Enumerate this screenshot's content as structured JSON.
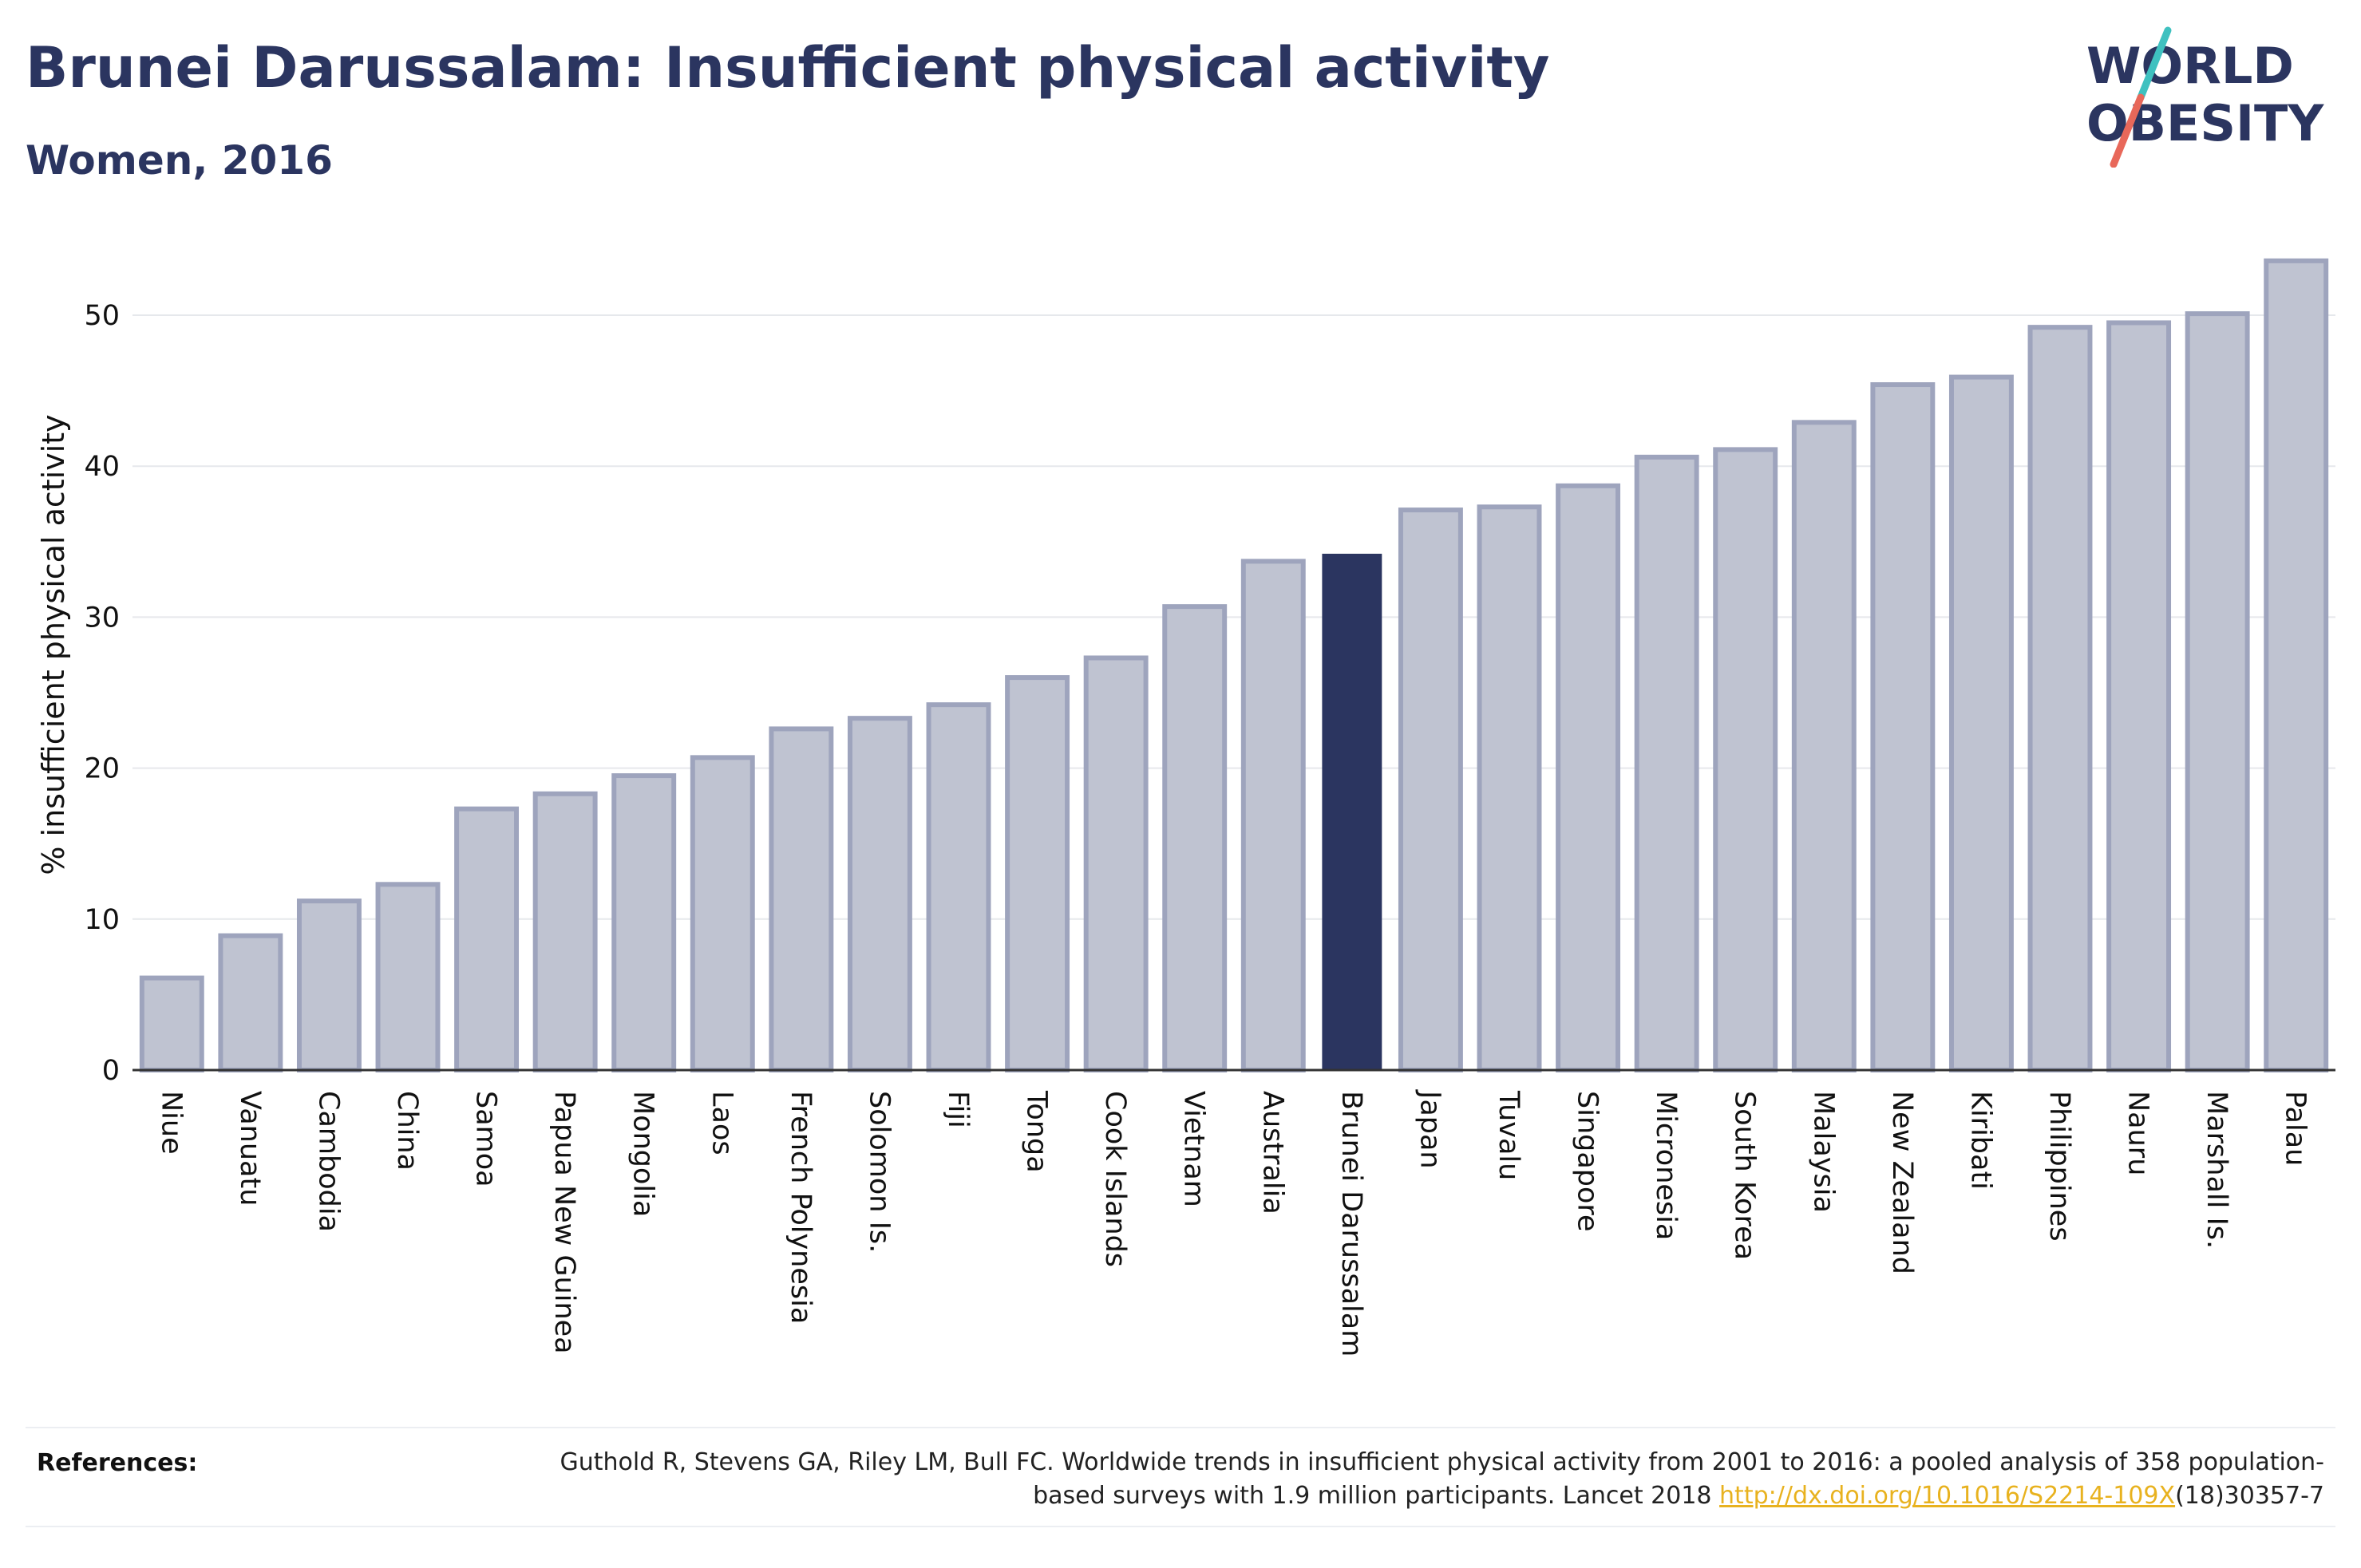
{
  "header": {
    "title": "Brunei Darussalam: Insufficient physical activity",
    "subtitle": "Women, 2016"
  },
  "logo": {
    "line1": "WORLD",
    "line2": "OBESITY",
    "colors": {
      "text": "#2b3560",
      "slash_top": "#3fc1c0",
      "slash_bottom": "#e8685a"
    }
  },
  "colors": {
    "bar_fill": "#bfc3d1",
    "bar_stroke": "#9ea4bd",
    "highlight": "#2b3560",
    "grid": "#e6e8ec",
    "axis": "#333333"
  },
  "chart_data": {
    "type": "bar",
    "title": "Brunei Darussalam: Insufficient physical activity",
    "subtitle": "Women, 2016",
    "ylabel": "% insufficient physical activity",
    "xlabel": "",
    "ylim": [
      0,
      55
    ],
    "yticks": [
      0,
      10,
      20,
      30,
      40,
      50
    ],
    "grid": true,
    "highlight": "Brunei Darussalam",
    "categories": [
      "Niue",
      "Vanuatu",
      "Cambodia",
      "China",
      "Samoa",
      "Papua New Guinea",
      "Mongolia",
      "Laos",
      "French Polynesia",
      "Solomon Is.",
      "Fiji",
      "Tonga",
      "Cook Islands",
      "Vietnam",
      "Australia",
      "Brunei Darussalam",
      "Japan",
      "Tuvalu",
      "Singapore",
      "Micronesia",
      "South Korea",
      "Malaysia",
      "New Zealand",
      "Kiribati",
      "Philippines",
      "Nauru",
      "Marshall Is.",
      "Palau"
    ],
    "values": [
      6.1,
      8.9,
      11.2,
      12.3,
      17.3,
      18.3,
      19.5,
      20.7,
      22.6,
      23.3,
      24.2,
      26.0,
      27.3,
      30.7,
      33.7,
      34.2,
      37.1,
      37.3,
      38.7,
      40.6,
      41.1,
      42.9,
      45.4,
      45.9,
      49.2,
      49.5,
      50.1,
      53.6
    ]
  },
  "references": {
    "label": "References:",
    "text_before": "Guthold R, Stevens GA, Riley LM, Bull FC. Worldwide trends in insufficient physical activity from 2001 to 2016: a pooled analysis of 358 population-based surveys with 1.9 million participants. Lancet 2018 ",
    "link": "http://dx.doi.org/10.1016/S2214-109X",
    "text_after": "(18)30357-7"
  }
}
